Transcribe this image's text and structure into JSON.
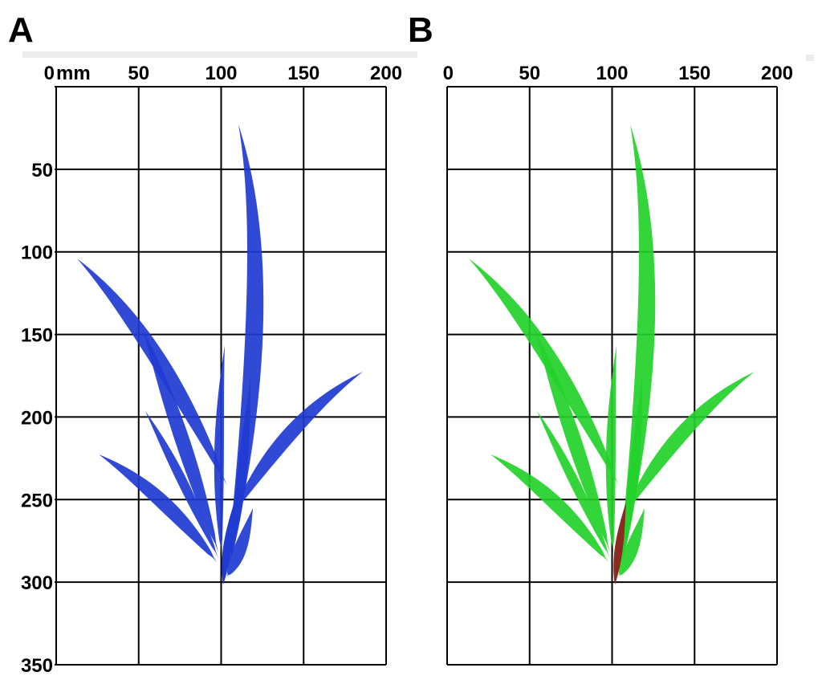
{
  "panels": [
    {
      "letter": "A",
      "x_unit": "mm",
      "x_ticks": [
        {
          "v": 0,
          "label": "0"
        },
        {
          "v": 50,
          "label": "50"
        },
        {
          "v": 100,
          "label": "100"
        },
        {
          "v": 150,
          "label": "150"
        },
        {
          "v": 200,
          "label": "200"
        }
      ],
      "y_ticks": [
        {
          "v": 50,
          "label": "50"
        },
        {
          "v": 100,
          "label": "100"
        },
        {
          "v": 150,
          "label": "150"
        },
        {
          "v": 200,
          "label": "200"
        },
        {
          "v": 250,
          "label": "250"
        },
        {
          "v": 300,
          "label": "300"
        },
        {
          "v": 350,
          "label": "350"
        }
      ],
      "leaf_color": "#1f3bd1",
      "stem_color": "#1f3bd1"
    },
    {
      "letter": "B",
      "x_unit": "",
      "x_ticks": [
        {
          "v": 0,
          "label": "0"
        },
        {
          "v": 50,
          "label": "50"
        },
        {
          "v": 100,
          "label": "100"
        },
        {
          "v": 150,
          "label": "150"
        },
        {
          "v": 200,
          "label": "200"
        }
      ],
      "y_ticks": [],
      "leaf_color": "#22d12a",
      "stem_color": "#8b2a1e"
    }
  ],
  "x_range": [
    0,
    200
  ],
  "y_range": [
    0,
    350
  ]
}
